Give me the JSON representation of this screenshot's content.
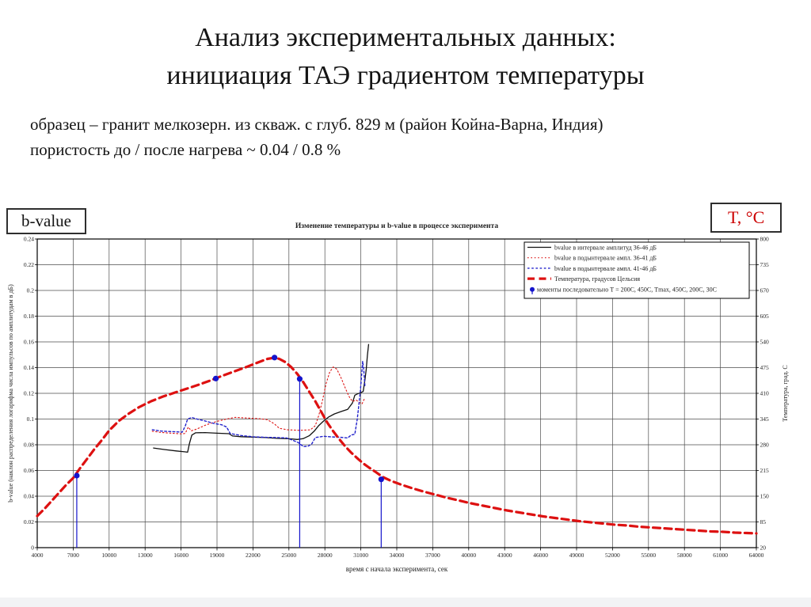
{
  "slide": {
    "title_line1": "Анализ экспериментальных данных:",
    "title_line2": "инициация ТАЭ градиентом температуры",
    "subtitle_line1": "образец – гранит мелкозерн. из скваж. с глуб. 829 м (район Койна-Варна, Индия)",
    "subtitle_line2": "пористость до / после нагрева ~ 0.04 / 0.8 %",
    "left_axis_box": "b-value",
    "right_axis_box": "T, °C",
    "accent_red": "#cc0000"
  },
  "chart_data": {
    "type": "line",
    "title": "Изменение температуры и b-value в процессе эксперимента",
    "xlabel": "время с начала эксперимента, сек",
    "ylabel_left": "b-value (наклон распределения логарифма числа импульсов по амплитудам в дБ)",
    "ylabel_right": "Температура, град. С",
    "xlim": [
      4000,
      64000
    ],
    "x_tick_step": 3000,
    "ylim_left": [
      0,
      0.24
    ],
    "y_left_tick_step": 0.02,
    "ylim_right": [
      20,
      800
    ],
    "y_right_tick_step": 65,
    "grid": true,
    "legend_position": "top-right",
    "series": [
      {
        "name": "bvalue в интервале амплитуд 36-46 дБ",
        "axis": "left",
        "style": "line",
        "dash": "none",
        "width": 1.3,
        "color": "#111111",
        "points": [
          [
            13700,
            0.0775
          ],
          [
            14600,
            0.0763
          ],
          [
            15600,
            0.0752
          ],
          [
            16300,
            0.0745
          ],
          [
            16550,
            0.0742
          ],
          [
            16700,
            0.081
          ],
          [
            16900,
            0.0875
          ],
          [
            17200,
            0.0893
          ],
          [
            18000,
            0.0895
          ],
          [
            19000,
            0.089
          ],
          [
            20000,
            0.0886
          ],
          [
            20300,
            0.0868
          ],
          [
            21000,
            0.0863
          ],
          [
            22000,
            0.086
          ],
          [
            23000,
            0.0856
          ],
          [
            24000,
            0.085
          ],
          [
            25000,
            0.0847
          ],
          [
            25700,
            0.0841
          ],
          [
            26200,
            0.0848
          ],
          [
            26700,
            0.087
          ],
          [
            27100,
            0.0905
          ],
          [
            27500,
            0.095
          ],
          [
            27900,
            0.0985
          ],
          [
            28300,
            0.1015
          ],
          [
            28800,
            0.104
          ],
          [
            29400,
            0.106
          ],
          [
            29900,
            0.1075
          ],
          [
            30100,
            0.11
          ],
          [
            30300,
            0.1125
          ],
          [
            30500,
            0.1185
          ],
          [
            30700,
            0.1195
          ],
          [
            31000,
            0.1205
          ],
          [
            31200,
            0.1215
          ],
          [
            31350,
            0.131
          ],
          [
            31450,
            0.1385
          ],
          [
            31550,
            0.1495
          ],
          [
            31650,
            0.158
          ]
        ]
      },
      {
        "name": "bvalue в подынтервале ампл. 36-41 дБ",
        "axis": "left",
        "style": "line",
        "dash": "1.6 2.8",
        "width": 1.1,
        "color": "#dd1111",
        "points": [
          [
            13600,
            0.0905
          ],
          [
            14300,
            0.0896
          ],
          [
            15200,
            0.089
          ],
          [
            16000,
            0.0885
          ],
          [
            16350,
            0.0888
          ],
          [
            16600,
            0.0938
          ],
          [
            16850,
            0.0908
          ],
          [
            17300,
            0.0922
          ],
          [
            18100,
            0.0955
          ],
          [
            19000,
            0.0982
          ],
          [
            19800,
            0.1
          ],
          [
            20500,
            0.1013
          ],
          [
            21500,
            0.1008
          ],
          [
            22500,
            0.1003
          ],
          [
            23200,
            0.0995
          ],
          [
            23800,
            0.0962
          ],
          [
            24200,
            0.0928
          ],
          [
            24900,
            0.0916
          ],
          [
            25900,
            0.0912
          ],
          [
            26800,
            0.0916
          ],
          [
            27200,
            0.0948
          ],
          [
            27500,
            0.103
          ],
          [
            27800,
            0.1145
          ],
          [
            28100,
            0.1275
          ],
          [
            28400,
            0.1365
          ],
          [
            28700,
            0.1405
          ],
          [
            29000,
            0.1388
          ],
          [
            29400,
            0.131
          ],
          [
            29700,
            0.1242
          ],
          [
            30000,
            0.1178
          ],
          [
            30300,
            0.1136
          ],
          [
            30600,
            0.1148
          ],
          [
            30900,
            0.1128
          ],
          [
            31100,
            0.1118
          ],
          [
            31350,
            0.1168
          ]
        ]
      },
      {
        "name": "bvalue в подынтервале ампл. 41-46 дБ",
        "axis": "left",
        "style": "line",
        "dash": "2.6 2.6",
        "width": 1.4,
        "color": "#2222cc",
        "points": [
          [
            13600,
            0.0916
          ],
          [
            14400,
            0.0906
          ],
          [
            15300,
            0.0902
          ],
          [
            16100,
            0.0898
          ],
          [
            16350,
            0.0945
          ],
          [
            16550,
            0.1
          ],
          [
            16900,
            0.1012
          ],
          [
            17400,
            0.0998
          ],
          [
            18000,
            0.0985
          ],
          [
            18700,
            0.0967
          ],
          [
            19400,
            0.0955
          ],
          [
            19800,
            0.0938
          ],
          [
            20100,
            0.0888
          ],
          [
            21000,
            0.0872
          ],
          [
            22000,
            0.0862
          ],
          [
            23000,
            0.0858
          ],
          [
            24000,
            0.0856
          ],
          [
            24800,
            0.0853
          ],
          [
            25300,
            0.0836
          ],
          [
            25800,
            0.0816
          ],
          [
            26200,
            0.0786
          ],
          [
            26600,
            0.0789
          ],
          [
            26900,
            0.0806
          ],
          [
            27200,
            0.0856
          ],
          [
            27900,
            0.0866
          ],
          [
            28600,
            0.0861
          ],
          [
            29300,
            0.0858
          ],
          [
            29900,
            0.0853
          ],
          [
            30200,
            0.0876
          ],
          [
            30500,
            0.0882
          ],
          [
            30700,
            0.1
          ],
          [
            30850,
            0.112
          ],
          [
            30950,
            0.1205
          ],
          [
            31050,
            0.1325
          ],
          [
            31150,
            0.145
          ],
          [
            31250,
            0.1375
          ],
          [
            31350,
            0.1245
          ]
        ]
      },
      {
        "name": "Температура, градусов Цельсия",
        "axis": "right",
        "style": "line",
        "dash": "9 5.5",
        "width": 3.2,
        "color": "#dd1111",
        "points": [
          [
            4000,
            100
          ],
          [
            4600,
            118
          ],
          [
            5200,
            138
          ],
          [
            5800,
            158
          ],
          [
            6400,
            178
          ],
          [
            7000,
            196
          ],
          [
            7600,
            222
          ],
          [
            8200,
            246
          ],
          [
            8800,
            270
          ],
          [
            9400,
            292
          ],
          [
            10000,
            316
          ],
          [
            10800,
            340
          ],
          [
            11600,
            358
          ],
          [
            12500,
            375
          ],
          [
            13500,
            390
          ],
          [
            14500,
            402
          ],
          [
            15500,
            412
          ],
          [
            16500,
            422
          ],
          [
            17500,
            432
          ],
          [
            18500,
            443
          ],
          [
            19500,
            455
          ],
          [
            20500,
            466
          ],
          [
            21500,
            477
          ],
          [
            22500,
            489
          ],
          [
            23200,
            497
          ],
          [
            23800,
            500
          ],
          [
            24200,
            497
          ],
          [
            24700,
            489
          ],
          [
            25200,
            476
          ],
          [
            25700,
            459
          ],
          [
            26200,
            438
          ],
          [
            26700,
            414
          ],
          [
            27200,
            390
          ],
          [
            27700,
            363
          ],
          [
            28200,
            336
          ],
          [
            28700,
            314
          ],
          [
            29200,
            294
          ],
          [
            29700,
            276
          ],
          [
            30200,
            260
          ],
          [
            30700,
            246
          ],
          [
            31200,
            233
          ],
          [
            31700,
            222
          ],
          [
            32200,
            212
          ],
          [
            32800,
            199
          ],
          [
            33500,
            189
          ],
          [
            34300,
            180
          ],
          [
            35200,
            171
          ],
          [
            36200,
            162
          ],
          [
            37200,
            154
          ],
          [
            38200,
            146
          ],
          [
            39200,
            139
          ],
          [
            40200,
            132
          ],
          [
            41200,
            126
          ],
          [
            42200,
            120
          ],
          [
            43200,
            114
          ],
          [
            44200,
            109
          ],
          [
            45200,
            104
          ],
          [
            46200,
            99
          ],
          [
            47200,
            95
          ],
          [
            48200,
            91
          ],
          [
            49200,
            87
          ],
          [
            50200,
            84
          ],
          [
            51200,
            81
          ],
          [
            52200,
            78
          ],
          [
            53200,
            76
          ],
          [
            54200,
            73
          ],
          [
            55200,
            71
          ],
          [
            56200,
            69
          ],
          [
            57200,
            67
          ],
          [
            58200,
            65
          ],
          [
            59200,
            63
          ],
          [
            60200,
            61
          ],
          [
            61200,
            60
          ],
          [
            62200,
            58
          ],
          [
            63200,
            57
          ],
          [
            64000,
            56
          ]
        ]
      },
      {
        "name": "моменты последовательно Т = 200С, 450С, Тmax, 450С, 200С, 30С",
        "axis": "left",
        "style": "markers",
        "width": 1.2,
        "color": "#1414cc",
        "points": [
          [
            7300,
            0.056,
            1
          ],
          [
            18900,
            0.1315,
            0
          ],
          [
            23800,
            0.1478,
            0
          ],
          [
            25900,
            0.1312,
            1
          ],
          [
            32700,
            0.0531,
            1
          ]
        ]
      }
    ]
  }
}
